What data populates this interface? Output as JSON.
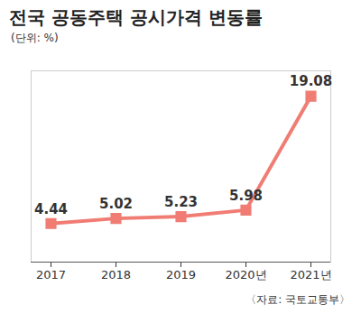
{
  "chart_data": {
    "type": "line",
    "title": "전국 공동주택 공시가격 변동률",
    "subtitle": "(단위: %)",
    "source": "〈자료: 국토교통부〉",
    "categories": [
      "2017",
      "2018",
      "2019",
      "2020년",
      "2021년"
    ],
    "values": [
      4.44,
      5.02,
      5.23,
      5.98,
      19.08
    ],
    "color": "#f07c73",
    "marker": "square",
    "line_style": "solid",
    "ylim": [
      0,
      22
    ],
    "grid": false,
    "data_labels": true,
    "tick_labels": "x"
  }
}
